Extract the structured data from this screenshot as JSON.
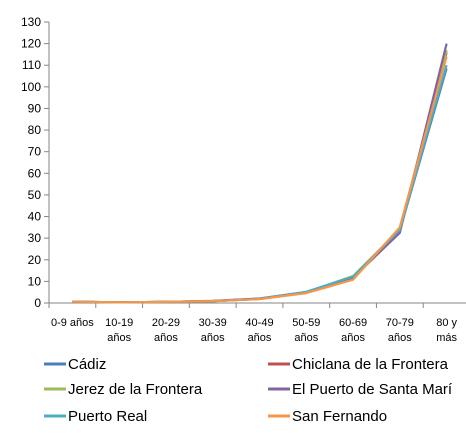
{
  "chart_data": {
    "type": "line",
    "title": "",
    "xlabel": "",
    "ylabel": "",
    "ylim": [
      0,
      130
    ],
    "y_step": 10,
    "grid": false,
    "legend_position": "bottom",
    "categories": [
      [
        "0-9 años"
      ],
      [
        "10-19",
        "años"
      ],
      [
        "20-29",
        "años"
      ],
      [
        "30-39",
        "años"
      ],
      [
        "40-49",
        "años"
      ],
      [
        "50-59",
        "años"
      ],
      [
        "60-69",
        "años"
      ],
      [
        "70-79",
        "años"
      ],
      [
        "80 y",
        "más"
      ]
    ],
    "series": [
      {
        "name": "Cádiz",
        "color": "#4a7ebb",
        "values": [
          0.6,
          0.3,
          0.5,
          0.9,
          1.9,
          4.9,
          12.2,
          33.5,
          108.5
        ]
      },
      {
        "name": "Chiclana de la Frontera",
        "color": "#c0504d",
        "values": [
          0.6,
          0.3,
          0.5,
          0.9,
          2.0,
          4.8,
          11.0,
          34.5,
          116.0
        ]
      },
      {
        "name": "Jerez de la Frontera",
        "color": "#9bbb59",
        "values": [
          0.6,
          0.3,
          0.5,
          0.9,
          2.0,
          5.0,
          12.5,
          34.0,
          117.0
        ]
      },
      {
        "name": "El Puerto de Santa Marí",
        "color": "#8064a2",
        "values": [
          0.6,
          0.3,
          0.5,
          1.0,
          2.1,
          5.1,
          11.7,
          32.5,
          120.0
        ]
      },
      {
        "name": "Puerto Real",
        "color": "#4bacc6",
        "values": [
          0.6,
          0.3,
          0.5,
          0.9,
          1.9,
          5.2,
          12.2,
          33.8,
          110.0
        ]
      },
      {
        "name": "San Fernando",
        "color": "#f79646",
        "values": [
          0.6,
          0.3,
          0.5,
          0.9,
          1.8,
          4.6,
          10.8,
          35.0,
          114.0
        ]
      }
    ]
  }
}
